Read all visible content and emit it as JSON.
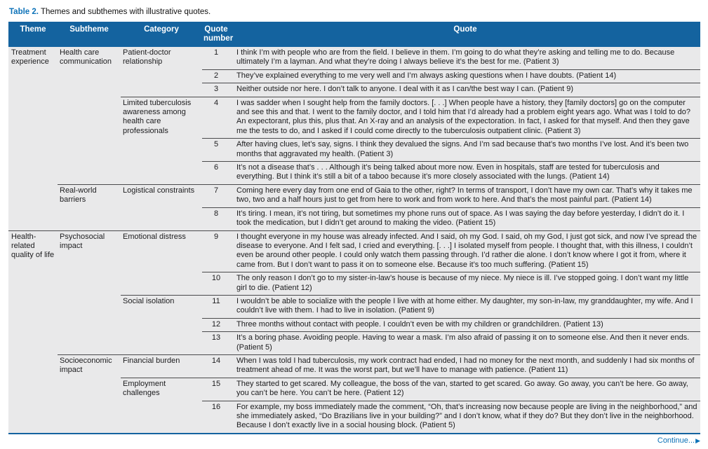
{
  "title": {
    "label": "Table 2.",
    "text": " Themes and subthemes with illustrative quotes."
  },
  "columns": [
    "Theme",
    "Subtheme",
    "Category",
    "Quote number",
    "Quote"
  ],
  "colors": {
    "header_bg": "#14639F",
    "accent_blue": "#0C72B8",
    "row_bg": "#E9E9EA",
    "divider": "#4A4A4C"
  },
  "footer": {
    "continue_label": "Continue...",
    "arrow_icon": "▶"
  },
  "rows": [
    {
      "theme": "Treatment experience",
      "subtheme": "Health care communication",
      "category": "Patient-doctor relationship",
      "quote_number": "1",
      "quote": "I think I’m with people who are from the field. I believe in them. I’m going to do what they’re asking and telling me to do. Because ultimately I’m a layman. And what they’re doing I always believe it’s the best for me. (Patient 3)"
    },
    {
      "quote_number": "2",
      "quote": "They’ve explained everything to me very well and I’m always asking questions when I have doubts. (Patient 14)"
    },
    {
      "quote_number": "3",
      "quote": "Neither outside nor here. I don’t talk to anyone. I deal with it as I can/the best way I can. (Patient 9)"
    },
    {
      "category": "Limited tuberculosis awareness among health care professionals",
      "quote_number": "4",
      "quote": "I was sadder when I sought help from the family doctors. [. . .] When people have a history, they [family doctors] go on the computer and see this and that. I went to the family doctor, and I told him that I’d already had a problem eight years ago. What was I told to do? An expectorant, plus this, plus that. An X-ray and an analysis of the expectoration. In fact, I asked for that myself. And then they gave me the tests to do, and I asked if I could come directly to the tuberculosis outpatient clinic. (Patient 3)"
    },
    {
      "quote_number": "5",
      "quote": "After having clues, let’s say, signs. I think they devalued the signs. And I’m sad because that’s two months I’ve lost. And it’s been two months that aggravated my health. (Patient 3)"
    },
    {
      "quote_number": "6",
      "quote": "It’s not a disease that’s . . . Although it’s being talked about more now. Even in hospitals, staff are tested for tuberculosis and everything. But I think it’s still a bit of a taboo because it’s more closely associated with the lungs. (Patient 14)"
    },
    {
      "subtheme": "Real-world barriers",
      "category": "Logistical constraints",
      "quote_number": "7",
      "quote": "Coming here every day from one end of Gaia to the other, right? In terms of transport, I don’t have my own car. That’s why it takes me two, two and a half hours just to get from here to work and from work to here. And that’s the most painful part. (Patient 14)"
    },
    {
      "quote_number": "8",
      "quote": "It’s tiring. I mean, it’s not tiring, but sometimes my phone runs out of space. As I was saying the day before yesterday, I didn’t do it. I took the medication, but I didn’t get around to making the video. (Patient 15)"
    },
    {
      "theme": "Health-related quality of life",
      "subtheme": "Psychosocial impact",
      "category": "Emotional distress",
      "quote_number": "9",
      "quote": "I thought everyone in my house was already infected. And I said, oh my God. I said, oh my God, I just got sick, and now I’ve spread the disease to everyone. And I felt sad, I cried and everything. [. . .] I isolated myself from people. I thought that, with this illness, I couldn’t even be around other people. I could only watch them passing through. I’d rather die alone. I don’t know where I got it from, where it came from. But I don’t want to pass it on to someone else. Because it’s too much suffering. (Patient 15)"
    },
    {
      "quote_number": "10",
      "quote": "The only reason I don’t go to my sister-in-law’s house is because of my niece. My niece is ill. I’ve stopped going. I don’t want my little girl to die. (Patient 12)"
    },
    {
      "category": "Social isolation",
      "quote_number": "11",
      "quote": "I wouldn’t be able to socialize with the people I live with at home either. My daughter, my son-in-law, my granddaughter, my wife. And I couldn’t live with them. I had to live in isolation. (Patient 9)"
    },
    {
      "quote_number": "12",
      "quote": "Three months without contact with people. I couldn’t even be with my children or grandchildren. (Patient 13)"
    },
    {
      "quote_number": "13",
      "quote": "It’s a boring phase. Avoiding people. Having to wear a mask. I’m also afraid of passing it on to someone else. And then it never ends. (Patient 5)"
    },
    {
      "subtheme": "Socioeconomic impact",
      "category": "Financial burden",
      "quote_number": "14",
      "quote": "When I was told I had tuberculosis, my work contract had ended, I had no money for the next month, and suddenly I had six months of treatment ahead of me. It was the worst part, but we’ll have to manage with patience. (Patient 11)"
    },
    {
      "category": "Employment challenges",
      "quote_number": "15",
      "quote": "They started to get scared. My colleague, the boss of the van, started to get scared. Go away. Go away, you can’t be here. Go away, you can’t be here. You can’t be here. (Patient 12)"
    },
    {
      "quote_number": "16",
      "quote": "For example, my boss immediately made the comment, “Oh, that’s increasing now because people are living in the neighborhood,” and she immediately asked, “Do Brazilians live in your building?” and I don’t know, what if they do? But they don’t live in the neighborhood. Because I don’t exactly live in a social housing block. (Patient 5)"
    }
  ]
}
